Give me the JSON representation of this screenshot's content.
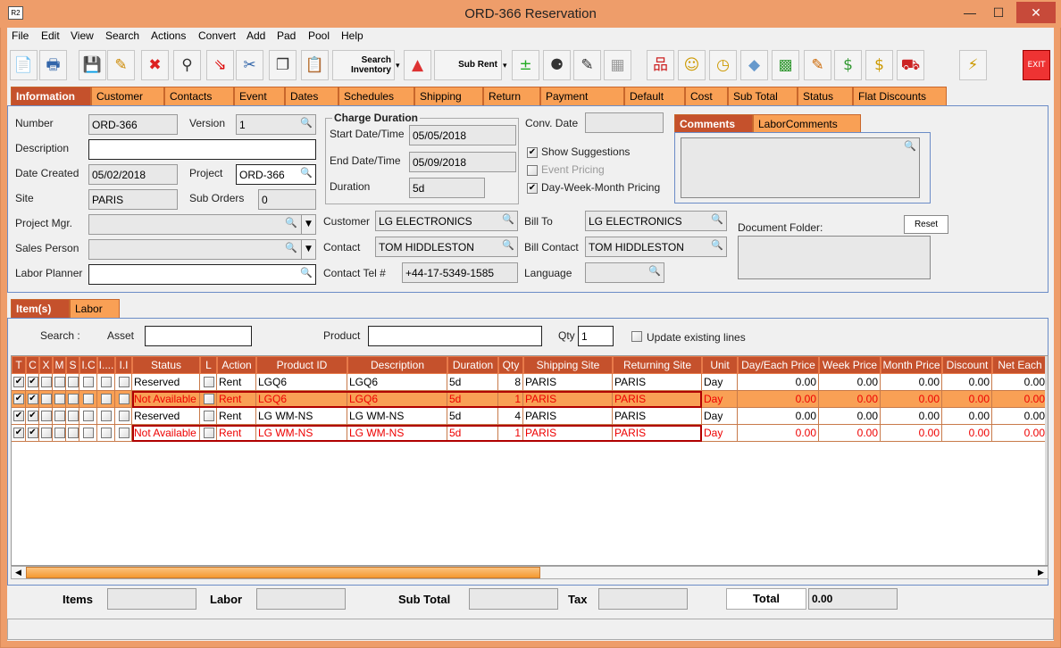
{
  "window": {
    "title": "ORD-366 Reservation",
    "app_icon": "R2",
    "min": "—",
    "max": "☐",
    "close": "✕"
  },
  "menu": [
    "File",
    "Edit",
    "View",
    "Search",
    "Actions",
    "Convert",
    "Add",
    "Pad",
    "Pool",
    "Help"
  ],
  "toolbar": {
    "search_inventory": "Search Inventory",
    "sub_rent": "Sub Rent",
    "exit": "EXIT"
  },
  "tabs": [
    "Information",
    "Customer",
    "Contacts",
    "Event",
    "Dates",
    "Schedules",
    "Shipping",
    "Return",
    "Payment",
    "Default",
    "Cost",
    "Sub Total",
    "Status",
    "Flat Discounts"
  ],
  "info": {
    "number_label": "Number",
    "number": "ORD-366",
    "version_label": "Version",
    "version": "1",
    "description_label": "Description",
    "description": "",
    "date_created_label": "Date Created",
    "date_created": "05/02/2018",
    "project_label": "Project",
    "project": "ORD-366",
    "site_label": "Site",
    "site": "PARIS",
    "sub_orders_label": "Sub Orders",
    "sub_orders": "0",
    "project_mgr_label": "Project Mgr.",
    "sales_person_label": "Sales Person",
    "labor_planner_label": "Labor Planner",
    "charge_duration_title": "Charge Duration",
    "start_label": "Start Date/Time",
    "start": "05/05/2018",
    "end_label": "End Date/Time",
    "end": "05/09/2018",
    "duration_label": "Duration",
    "duration": "5d",
    "conv_date_label": "Conv. Date",
    "show_suggestions": "Show Suggestions",
    "event_pricing": "Event Pricing",
    "dwm_pricing": "Day-Week-Month Pricing",
    "customer_label": "Customer",
    "customer": "LG ELECTRONICS",
    "contact_label": "Contact",
    "contact": "TOM HIDDLESTON",
    "tel_label": "Contact Tel #",
    "tel": "+44-17-5349-1585",
    "bill_to_label": "Bill To",
    "bill_to": "LG ELECTRONICS",
    "bill_contact_label": "Bill Contact",
    "bill_contact": "TOM HIDDLESTON",
    "language_label": "Language",
    "comment_tabs": [
      "Comments",
      "LaborComments"
    ],
    "doc_folder_label": "Document Folder:",
    "reset": "Reset"
  },
  "items_tabs": [
    "Item(s)",
    "Labor"
  ],
  "search": {
    "label": "Search :",
    "asset_label": "Asset",
    "product_label": "Product",
    "qty_label": "Qty",
    "qty": "1",
    "update_label": "Update existing lines"
  },
  "table": {
    "columns": [
      "T",
      "C",
      "X",
      "M",
      "S",
      "I.C",
      "I....",
      "I.I",
      "Status",
      "L",
      "Action",
      "Product ID",
      "Description",
      "Duration",
      "Qty",
      "Shipping Site",
      "Returning Site",
      "Unit",
      "Day/Each Price",
      "Week Price",
      "Month Price",
      "Discount",
      "Net Each"
    ],
    "rows": [
      {
        "status": "Reserved",
        "action": "Rent",
        "product_id": "LGQ6",
        "description": "LGQ6",
        "duration": "5d",
        "qty": "8",
        "shipping": "PARIS",
        "returning": "PARIS",
        "unit": "Day",
        "day": "0.00",
        "week": "0.00",
        "month": "0.00",
        "discount": "0.00",
        "net": "0.00",
        "unavailable": false,
        "selected": false
      },
      {
        "status": "Not Available",
        "action": "Rent",
        "product_id": "LGQ6",
        "description": "LGQ6",
        "duration": "5d",
        "qty": "1",
        "shipping": "PARIS",
        "returning": "PARIS",
        "unit": "Day",
        "day": "0.00",
        "week": "0.00",
        "month": "0.00",
        "discount": "0.00",
        "net": "0.00",
        "unavailable": true,
        "selected": true
      },
      {
        "status": "Reserved",
        "action": "Rent",
        "product_id": "LG WM-NS",
        "description": "LG WM-NS",
        "duration": "5d",
        "qty": "4",
        "shipping": "PARIS",
        "returning": "PARIS",
        "unit": "Day",
        "day": "0.00",
        "week": "0.00",
        "month": "0.00",
        "discount": "0.00",
        "net": "0.00",
        "unavailable": false,
        "selected": false
      },
      {
        "status": "Not Available",
        "action": "Rent",
        "product_id": "LG WM-NS",
        "description": "LG WM-NS",
        "duration": "5d",
        "qty": "1",
        "shipping": "PARIS",
        "returning": "PARIS",
        "unit": "Day",
        "day": "0.00",
        "week": "0.00",
        "month": "0.00",
        "discount": "0.00",
        "net": "0.00",
        "unavailable": true,
        "selected": false
      }
    ]
  },
  "totals": {
    "items_label": "Items",
    "labor_label": "Labor",
    "subtotal_label": "Sub Total",
    "tax_label": "Tax",
    "total_label": "Total",
    "total": "0.00"
  },
  "colors": {
    "accent": "#c5512c",
    "tab": "#f9a055",
    "frame": "#ee9d6a",
    "error": "#ee0000"
  }
}
